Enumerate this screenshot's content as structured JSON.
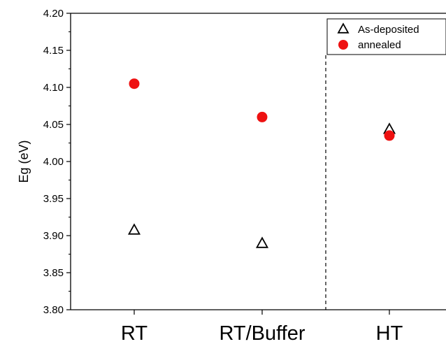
{
  "chart_data": {
    "type": "scatter",
    "title": "",
    "xlabel": "",
    "ylabel": "Eg (eV)",
    "categories": [
      "RT",
      "RT/Buffer",
      "HT"
    ],
    "ylim": [
      3.8,
      4.2
    ],
    "yticks": [
      "3.80",
      "3.85",
      "3.90",
      "3.95",
      "4.00",
      "4.05",
      "4.10",
      "4.15",
      "4.20"
    ],
    "grid": false,
    "legend_position": "top-right",
    "divider_between": [
      "RT/Buffer",
      "HT"
    ],
    "series": [
      {
        "name": "As-deposited",
        "marker": "open-triangle",
        "color": "#000000",
        "values": [
          3.907,
          3.889,
          4.043
        ]
      },
      {
        "name": "annealed",
        "marker": "filled-circle",
        "color": "#ee1111",
        "values": [
          4.105,
          4.06,
          4.035
        ]
      }
    ]
  }
}
